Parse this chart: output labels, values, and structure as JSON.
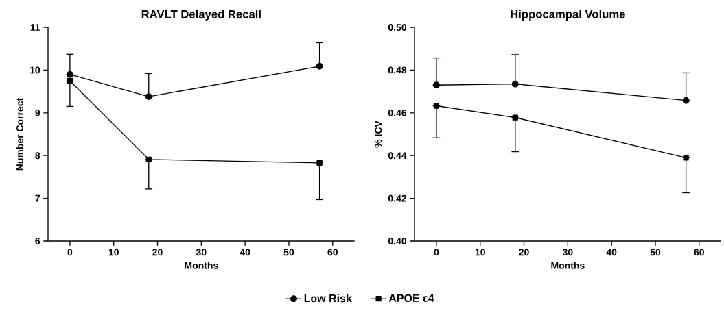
{
  "chart_data": [
    {
      "type": "line",
      "title": "RAVLT Delayed Recall",
      "xlabel": "Months",
      "ylabel": "Number Correct",
      "x": [
        0,
        18,
        57
      ],
      "xlim": [
        -5,
        65
      ],
      "xticks": [
        0,
        10,
        20,
        30,
        40,
        50,
        60
      ],
      "ylim": [
        6,
        11
      ],
      "yticks": [
        6,
        7,
        8,
        9,
        10,
        11
      ],
      "legend": "bottom",
      "line_style": "solid",
      "series": [
        {
          "name": "Low Risk",
          "color": "#000000",
          "marker": "circle",
          "values": [
            9.9,
            9.38,
            10.09
          ],
          "errors": [
            [
              9.9,
              10.37
            ],
            [
              9.38,
              9.92
            ],
            [
              10.09,
              10.64
            ]
          ]
        },
        {
          "name": "APOE ε4",
          "color": "#000000",
          "marker": "square",
          "values": [
            9.75,
            7.91,
            7.83
          ],
          "errors": [
            [
              9.15,
              9.75
            ],
            [
              7.22,
              7.91
            ],
            [
              6.97,
              7.83
            ]
          ]
        }
      ]
    },
    {
      "type": "line",
      "title": "Hippocampal Volume",
      "xlabel": "Months",
      "ylabel": "% ICV",
      "x": [
        0,
        18,
        57
      ],
      "xlim": [
        -5,
        65
      ],
      "xticks": [
        0,
        10,
        20,
        30,
        40,
        50,
        60
      ],
      "ylim": [
        0.4,
        0.5
      ],
      "yticks": [
        {
          "value": 0.4,
          "label": "0.40"
        },
        {
          "value": 0.42,
          "label": "0.42"
        },
        {
          "value": 0.44,
          "label": "0.44"
        },
        {
          "value": 0.46,
          "label": "0.46"
        },
        {
          "value": 0.48,
          "label": "0.48"
        },
        {
          "value": 0.5,
          "label": "0.50"
        }
      ],
      "line_style": "solid",
      "series": [
        {
          "color": "#000000",
          "marker": "circle",
          "values": [
            0.473,
            0.4735,
            0.4658
          ],
          "errors": [
            [
              0.473,
              0.4857
            ],
            [
              0.4735,
              0.4872
            ],
            [
              0.4658,
              0.4787
            ]
          ]
        },
        {
          "color": "#000000",
          "marker": "square",
          "values": [
            0.4633,
            0.4578,
            0.439
          ],
          "errors": [
            [
              0.4483,
              0.4633
            ],
            [
              0.4418,
              0.4578
            ],
            [
              0.4226,
              0.439
            ]
          ]
        }
      ]
    }
  ]
}
